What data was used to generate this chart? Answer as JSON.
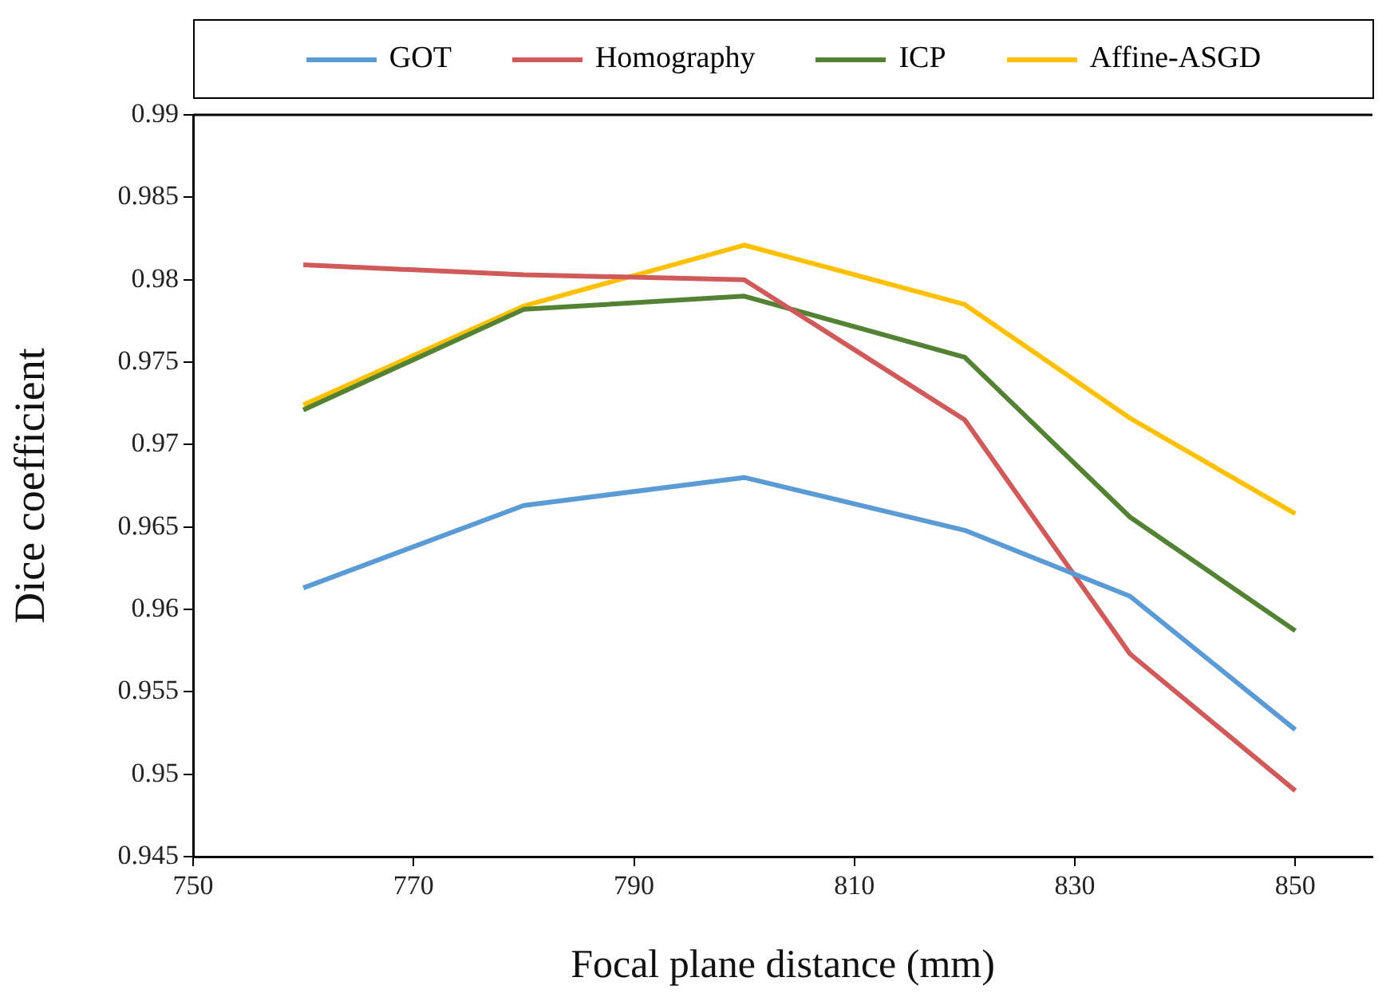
{
  "chart_data": {
    "type": "line",
    "xlabel": "Focal plane distance (mm)",
    "ylabel": "Dice coefficient",
    "x": [
      760,
      780,
      800,
      820,
      835,
      850
    ],
    "series": [
      {
        "name": "GOT",
        "color": "#5b9bd5",
        "values": [
          0.9613,
          0.9663,
          0.968,
          0.9648,
          0.9608,
          0.9527
        ]
      },
      {
        "name": "Homography",
        "color": "#d05a5a",
        "values": [
          0.9809,
          0.9803,
          0.98,
          0.9715,
          0.9573,
          0.949
        ]
      },
      {
        "name": "ICP",
        "color": "#548235",
        "values": [
          0.9721,
          0.9782,
          0.979,
          0.9753,
          0.9656,
          0.9587
        ]
      },
      {
        "name": "Affine-ASGD",
        "color": "#ffc000",
        "values": [
          0.9724,
          0.9784,
          0.9821,
          0.9785,
          0.9716,
          0.9658
        ]
      }
    ],
    "xlim": [
      750,
      857
    ],
    "xticks": [
      750,
      770,
      790,
      810,
      830,
      850
    ],
    "ylim": [
      0.945,
      0.99
    ],
    "yticks": [
      0.945,
      0.95,
      0.955,
      0.96,
      0.965,
      0.97,
      0.975,
      0.98,
      0.985,
      0.99
    ],
    "grid": false,
    "legend": "top",
    "marker": "none",
    "line_style": "solid"
  }
}
